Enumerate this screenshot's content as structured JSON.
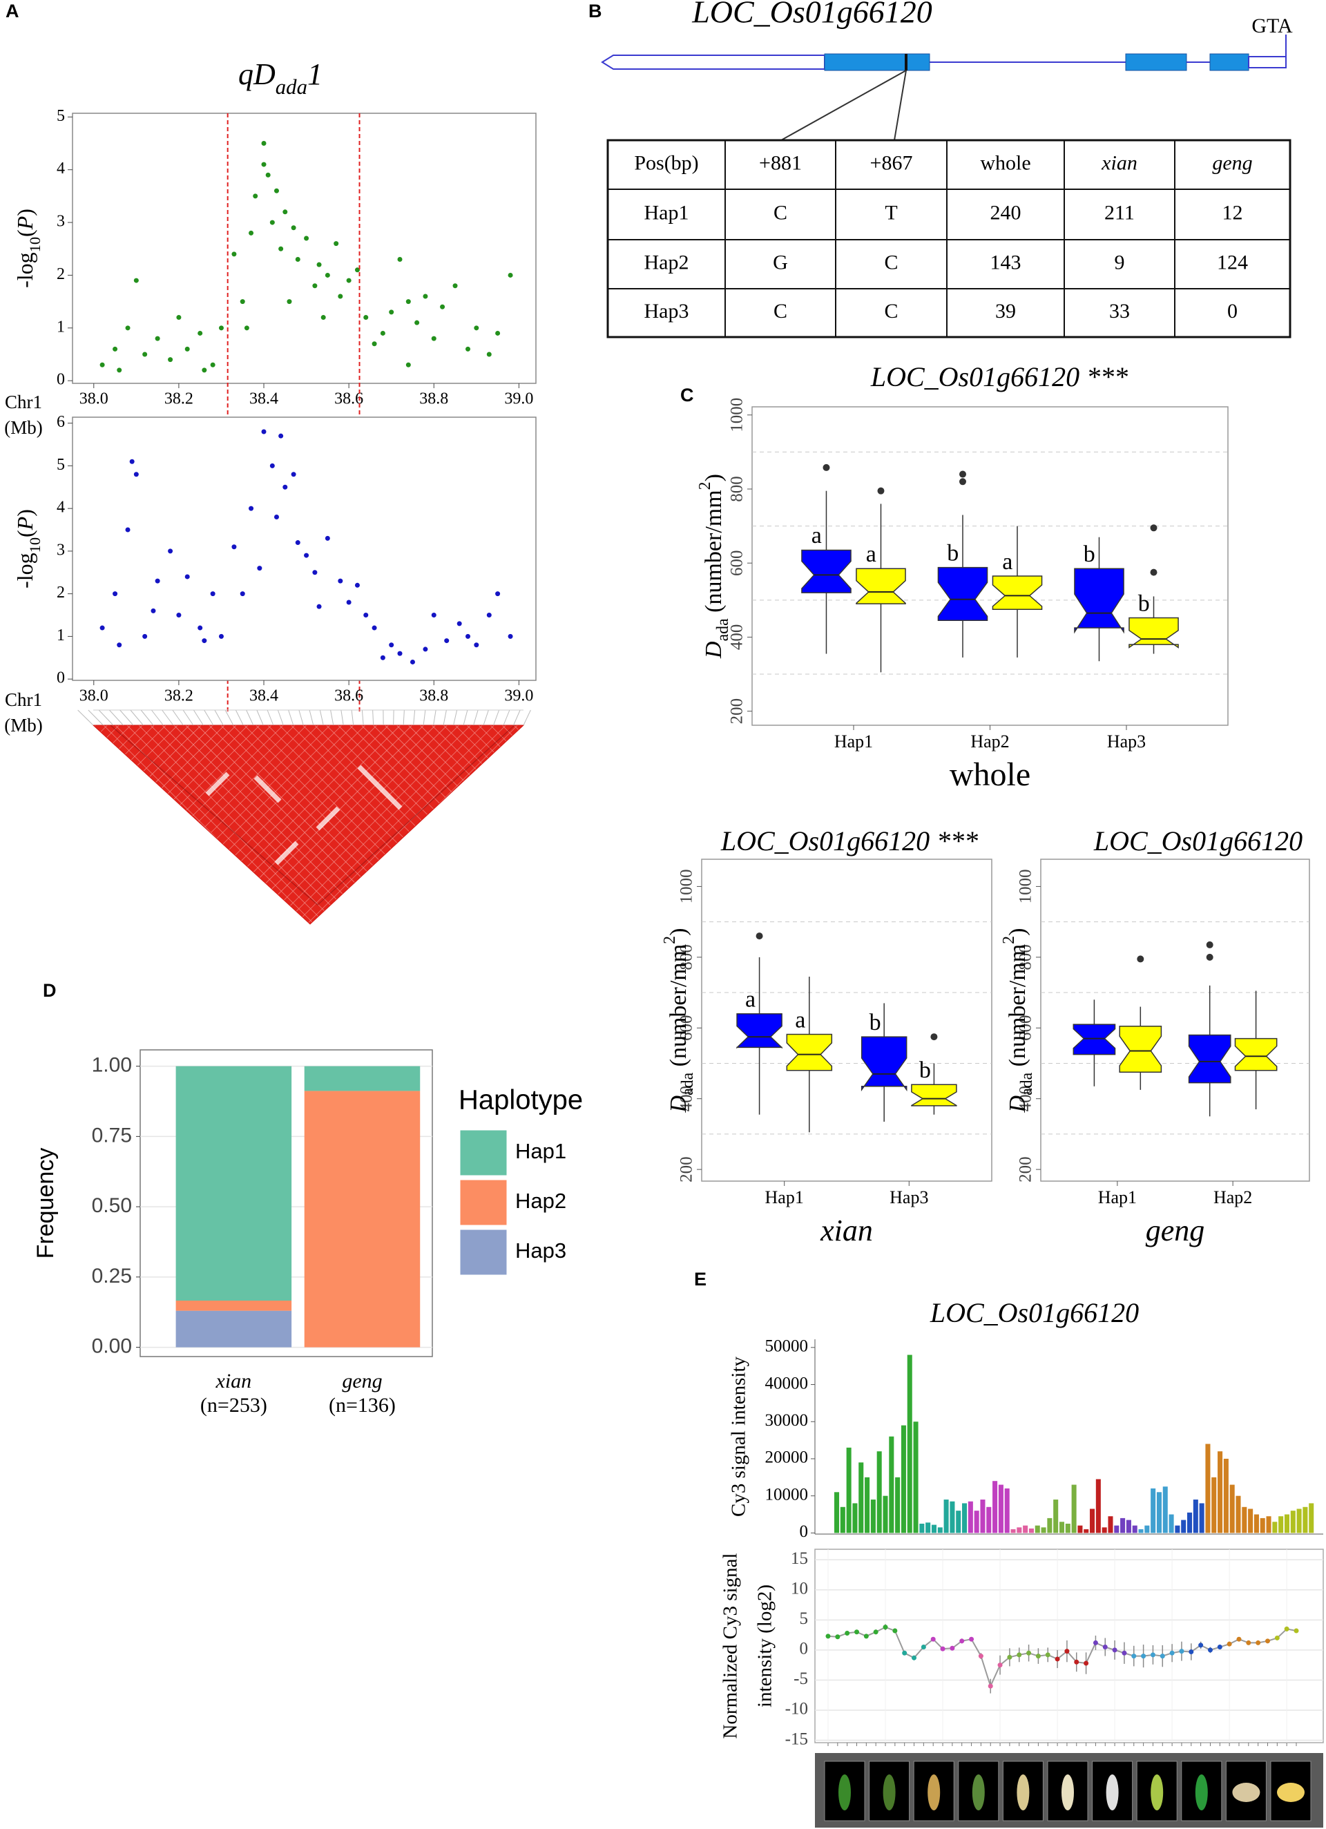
{
  "panel_labels": [
    "A",
    "B",
    "C",
    "D",
    "E"
  ],
  "gene": {
    "name": "LOC_Os01g66120",
    "end_label": "GTA"
  },
  "table": {
    "header": [
      "Pos(bp)",
      "+881",
      "+867",
      "whole",
      "xian",
      "geng"
    ],
    "rows": [
      [
        "Hap1",
        "C",
        "T",
        240,
        211,
        12
      ],
      [
        "Hap2",
        "G",
        "C",
        143,
        9,
        124
      ],
      [
        "Hap3",
        "C",
        "C",
        39,
        33,
        0
      ]
    ]
  },
  "chart_data": [
    {
      "type": "scatter",
      "title": [
        {
          "text": "qD"
        },
        {
          "text": "ada",
          "sub": true
        },
        {
          "text": "1"
        }
      ],
      "color": "#23901c",
      "ylabel": [
        {
          "text": "-log"
        },
        {
          "text": "10",
          "sub": true
        },
        {
          "text": "("
        },
        {
          "text": "P",
          "italic": true
        },
        {
          "text": ")"
        }
      ],
      "xlabel": [
        "Chr1",
        "(Mb)"
      ],
      "xlim": [
        37.95,
        39.04
      ],
      "ylim": [
        -0.05,
        5.07
      ],
      "xticks": [
        {
          "value": 38,
          "label": "38.0"
        },
        38.2,
        38.4,
        38.6,
        38.8,
        {
          "value": 39,
          "label": "39.0"
        }
      ],
      "yticks": [
        0,
        1,
        2,
        3,
        4,
        5
      ],
      "region": [
        38.315,
        38.625
      ],
      "x": [
        38.02,
        38.05,
        38.08,
        38.1,
        38.12,
        38.15,
        38.18,
        38.2,
        38.22,
        38.25,
        38.28,
        38.3,
        38.33,
        38.35,
        38.37,
        38.38,
        38.4,
        38.4,
        38.41,
        38.42,
        38.43,
        38.44,
        38.45,
        38.47,
        38.48,
        38.5,
        38.52,
        38.53,
        38.55,
        38.57,
        38.58,
        38.6,
        38.62,
        38.64,
        38.66,
        38.68,
        38.7,
        38.72,
        38.74,
        38.76,
        38.78,
        38.8,
        38.82,
        38.85,
        38.88,
        38.9,
        38.93,
        38.95,
        38.98,
        38.36,
        38.46,
        38.54,
        38.06,
        38.26,
        38.74
      ],
      "y": [
        0.3,
        0.6,
        1.0,
        1.9,
        0.5,
        0.8,
        0.4,
        1.2,
        0.6,
        0.9,
        0.3,
        1.0,
        2.4,
        1.5,
        2.8,
        3.5,
        4.5,
        4.1,
        3.9,
        3.0,
        3.6,
        2.5,
        3.2,
        2.9,
        2.3,
        2.7,
        1.8,
        2.2,
        2.0,
        2.6,
        1.6,
        1.9,
        2.1,
        1.2,
        0.7,
        0.9,
        1.3,
        2.3,
        1.5,
        1.1,
        1.6,
        0.8,
        1.4,
        1.8,
        0.6,
        1.0,
        0.5,
        0.9,
        2.0,
        1.0,
        1.5,
        1.2,
        0.2,
        0.2,
        0.3
      ]
    },
    {
      "type": "scatter",
      "color": "#1414c4",
      "ylabel": [
        {
          "text": "-log"
        },
        {
          "text": "10",
          "sub": true
        },
        {
          "text": "("
        },
        {
          "text": "P",
          "italic": true
        },
        {
          "text": ")"
        }
      ],
      "xlabel": [
        "Chr1",
        "(Mb)"
      ],
      "xlim": [
        37.95,
        39.04
      ],
      "ylim": [
        -0.03,
        6.14
      ],
      "xticks": [
        {
          "value": 38,
          "label": "38.0"
        },
        38.2,
        38.4,
        38.6,
        38.8,
        {
          "value": 39,
          "label": "39.0"
        }
      ],
      "yticks": [
        0,
        1,
        2,
        3,
        4,
        5,
        6
      ],
      "x": [
        38.02,
        38.05,
        38.08,
        38.09,
        38.1,
        38.12,
        38.15,
        38.18,
        38.2,
        38.22,
        38.25,
        38.28,
        38.3,
        38.33,
        38.35,
        38.37,
        38.4,
        38.42,
        38.44,
        38.45,
        38.47,
        38.43,
        38.48,
        38.5,
        38.52,
        38.55,
        38.58,
        38.6,
        38.62,
        38.64,
        38.66,
        38.68,
        38.7,
        38.72,
        38.75,
        38.78,
        38.8,
        38.83,
        38.86,
        38.88,
        38.9,
        38.93,
        38.95,
        38.98,
        38.06,
        38.14,
        38.26,
        38.39,
        38.53
      ],
      "y": [
        1.2,
        2.0,
        3.5,
        5.1,
        4.8,
        1.0,
        2.3,
        3.0,
        1.5,
        2.4,
        1.2,
        2.0,
        1.0,
        3.1,
        2.0,
        4.0,
        5.8,
        5.0,
        5.7,
        4.5,
        4.8,
        3.8,
        3.2,
        2.9,
        2.5,
        3.3,
        2.3,
        1.8,
        2.2,
        1.5,
        1.2,
        0.5,
        0.8,
        0.6,
        0.4,
        0.7,
        1.5,
        0.9,
        1.3,
        1.0,
        0.8,
        1.5,
        2.0,
        1.0,
        0.8,
        1.6,
        0.9,
        2.6,
        1.7
      ]
    },
    {
      "type": "box",
      "title": "LOC_Os01g66120 ***",
      "xlabel": "whole",
      "ylabel": [
        {
          "text": "D",
          "italic": true
        },
        {
          "text": "ada",
          "sub": true
        },
        {
          "text": " (number/mm"
        },
        {
          "text": "2",
          "sup": true
        },
        {
          "text": ")"
        }
      ],
      "ylim": [
        162,
        1022
      ],
      "yticks": [
        200,
        400,
        600,
        800,
        1000
      ],
      "minor_yticks": [
        300,
        500,
        700,
        900
      ],
      "categories": [
        "Hap1",
        "Hap2",
        "Hap3"
      ],
      "series": [
        {
          "color": "#0000ff",
          "letters": [
            "a",
            "b",
            "b"
          ],
          "boxes": [
            {
              "low": 355,
              "q1": 520,
              "median": 568,
              "q3": 635,
              "high": 795,
              "outliers": [
                858
              ]
            },
            {
              "low": 345,
              "q1": 445,
              "median": 502,
              "q3": 588,
              "high": 730,
              "outliers": [
                820,
                840
              ]
            },
            {
              "low": 335,
              "q1": 425,
              "median": 465,
              "q3": 585,
              "high": 670,
              "outliers": []
            }
          ]
        },
        {
          "color": "#ffff00",
          "letters": [
            "a",
            "a",
            "b"
          ],
          "boxes": [
            {
              "low": 305,
              "q1": 490,
              "median": 522,
              "q3": 585,
              "high": 760,
              "outliers": [
                795
              ]
            },
            {
              "low": 345,
              "q1": 475,
              "median": 512,
              "q3": 565,
              "high": 700,
              "outliers": []
            },
            {
              "low": 355,
              "q1": 380,
              "median": 395,
              "q3": 452,
              "high": 510,
              "outliers": [
                575,
                695
              ]
            }
          ]
        }
      ]
    },
    {
      "type": "box",
      "title": "LOC_Os01g66120 ***",
      "xlabel": "xian",
      "ylabel": [
        {
          "text": "D",
          "italic": true
        },
        {
          "text": "ada",
          "sub": true
        },
        {
          "text": " (number/mm"
        },
        {
          "text": "2",
          "sup": true
        },
        {
          "text": ")"
        }
      ],
      "ylim": [
        167,
        1077
      ],
      "yticks": [
        200,
        400,
        600,
        800,
        1000
      ],
      "minor_yticks": [
        300,
        500,
        700,
        900
      ],
      "categories": [
        "Hap1",
        "Hap3"
      ],
      "series": [
        {
          "color": "#0000ff",
          "letters": [
            "a",
            "b"
          ],
          "boxes": [
            {
              "low": 355,
              "q1": 545,
              "median": 575,
              "q3": 640,
              "high": 800,
              "outliers": [
                860
              ]
            },
            {
              "low": 335,
              "q1": 435,
              "median": 470,
              "q3": 575,
              "high": 670,
              "outliers": []
            }
          ]
        },
        {
          "color": "#ffff00",
          "letters": [
            "a",
            "b"
          ],
          "boxes": [
            {
              "low": 305,
              "q1": 480,
              "median": 525,
              "q3": 582,
              "high": 745,
              "outliers": []
            },
            {
              "low": 355,
              "q1": 380,
              "median": 400,
              "q3": 440,
              "high": 500,
              "outliers": [
                575
              ]
            }
          ]
        }
      ]
    },
    {
      "type": "box",
      "title": "LOC_Os01g66120",
      "xlabel": "geng",
      "ylabel": [
        {
          "text": "D",
          "italic": true
        },
        {
          "text": "ada",
          "sub": true
        },
        {
          "text": " (number/mm"
        },
        {
          "text": "2",
          "sup": true
        },
        {
          "text": ")"
        }
      ],
      "ylim": [
        167,
        1077
      ],
      "yticks": [
        200,
        400,
        600,
        800,
        1000
      ],
      "minor_yticks": [
        300,
        500,
        700,
        900
      ],
      "categories": [
        "Hap1",
        "Hap2"
      ],
      "series": [
        {
          "color": "#0000ff",
          "boxes": [
            {
              "low": 435,
              "q1": 525,
              "median": 570,
              "q3": 610,
              "high": 680,
              "outliers": []
            },
            {
              "low": 350,
              "q1": 445,
              "median": 505,
              "q3": 580,
              "high": 720,
              "outliers": [
                800,
                835
              ]
            }
          ]
        },
        {
          "color": "#ffff00",
          "boxes": [
            {
              "low": 425,
              "q1": 475,
              "median": 535,
              "q3": 605,
              "high": 660,
              "outliers": [
                795
              ]
            },
            {
              "low": 370,
              "q1": 480,
              "median": 520,
              "q3": 570,
              "high": 705,
              "outliers": []
            }
          ]
        }
      ]
    },
    {
      "type": "bar",
      "stacked": true,
      "title": "LOC_Os01g66120",
      "ylabel": "Frequency",
      "legend_title": "Haplotype",
      "legend": "right",
      "categories": [
        "xian",
        "geng"
      ],
      "n_labels": [
        "(n=253)",
        "(n=136)"
      ],
      "ylim": [
        -0.033,
        1.058
      ],
      "yticks": [
        {
          "value": 0,
          "label": "0.00"
        },
        {
          "value": 0.25,
          "label": "0.25"
        },
        {
          "value": 0.5,
          "label": "0.50"
        },
        {
          "value": 0.75,
          "label": "0.75"
        },
        {
          "value": 1,
          "label": "1.00"
        }
      ],
      "series": [
        {
          "name": "Hap1",
          "color": "#66c2a5",
          "values": [
            0.834,
            0.088
          ]
        },
        {
          "name": "Hap2",
          "color": "#fc8d62",
          "values": [
            0.036,
            0.912
          ]
        },
        {
          "name": "Hap3",
          "color": "#8da0cb",
          "values": [
            0.13,
            0
          ]
        }
      ]
    },
    {
      "type": "bar",
      "title": "LOC_Os01g66120",
      "ylabel": "Cy3 signal intensity",
      "ylim": [
        -300,
        52200
      ],
      "yticks": [
        0,
        10000,
        20000,
        30000,
        40000,
        50000
      ],
      "series": [
        {
          "color": "#33aa33",
          "values": [
            11000,
            7000,
            23000,
            8000,
            19000,
            15000,
            9000,
            22000,
            10000,
            26000,
            15000,
            29000,
            48000,
            30000
          ]
        },
        {
          "color": "#22a89a",
          "values": [
            2500,
            2800,
            2200,
            1500,
            9000,
            8500,
            6000,
            8000
          ]
        },
        {
          "color": "#c040c0",
          "values": [
            8500,
            6000,
            9000,
            7000,
            14000,
            13000,
            12000
          ]
        },
        {
          "color": "#e060a0",
          "values": [
            1000,
            1500,
            2000,
            1200
          ]
        },
        {
          "color": "#7ab040",
          "values": [
            2000,
            1500,
            4000,
            9000,
            3000,
            2500,
            13000
          ]
        },
        {
          "color": "#c02020",
          "values": [
            2000,
            1000,
            6500,
            14500,
            1500,
            4500
          ]
        },
        {
          "color": "#7040c0",
          "values": [
            2000,
            4000,
            3500,
            2000
          ]
        },
        {
          "color": "#40a0d0",
          "values": [
            1000,
            2000,
            12000,
            11000,
            12500,
            5000
          ]
        },
        {
          "color": "#2050c0",
          "values": [
            2000,
            3500,
            5500,
            9000,
            8000
          ]
        },
        {
          "color": "#d08020",
          "values": [
            24000,
            15000,
            22000,
            20000,
            13000,
            10000,
            7000,
            6500,
            5000,
            4000,
            4500
          ]
        },
        {
          "color": "#b0c020",
          "values": [
            3000,
            4500,
            5000,
            6000,
            6500,
            7000,
            8000
          ]
        }
      ]
    },
    {
      "type": "line",
      "ylabel": [
        "Normalized Cy3 signal",
        "intensity (log2)"
      ],
      "ylim": [
        -15.4,
        16.75
      ],
      "yticks": [
        -15,
        -10,
        -5,
        0,
        5,
        10,
        15
      ],
      "grid": true,
      "series": [
        {
          "color": "#9a9a9a",
          "values": [
            2.3,
            2.2,
            2.8,
            3,
            2.3,
            3,
            3.8,
            3.2,
            -0.5,
            -1.3,
            0.5,
            1.8,
            0.2,
            0.3,
            1.5,
            1.8,
            -1,
            -6,
            -2.5,
            -1.2,
            -0.8,
            -0.5,
            -1,
            -0.8,
            -1.5,
            -0.2,
            -2,
            -2.2,
            1.2,
            0.5,
            0,
            -0.5,
            -1,
            -1,
            -0.8,
            -1,
            -0.5,
            -0.2,
            -0.3,
            0.8,
            0,
            0.5,
            1,
            1.8,
            1.2,
            1.2,
            1.5,
            2,
            3.5,
            3.2
          ],
          "errors": [
            0.3,
            0.3,
            0.4,
            0.3,
            0.3,
            0.4,
            0.5,
            0.4,
            0.3,
            0.4,
            0.3,
            0.3,
            0.3,
            0.3,
            0.4,
            0.3,
            0.5,
            1.2,
            1.6,
            1.5,
            1.2,
            1.4,
            1.3,
            1.2,
            1.5,
            1.8,
            1.6,
            1.8,
            1.2,
            1.5,
            1.6,
            1.8,
            1.7,
            1.9,
            1.6,
            1.8,
            1.5,
            1.6,
            1.4,
            0.6,
            0.5,
            0.4,
            0.3,
            0.3,
            0.3,
            0.3,
            0.3,
            0.3,
            0.4,
            0.3
          ],
          "point_colors": [
            "#33aa33",
            "#33aa33",
            "#33aa33",
            "#33aa33",
            "#33aa33",
            "#33aa33",
            "#33aa33",
            "#33aa33",
            "#22a89a",
            "#22a89a",
            "#22a89a",
            "#c040c0",
            "#c040c0",
            "#c040c0",
            "#c040c0",
            "#c040c0",
            "#e060a0",
            "#e060a0",
            "#e060a0",
            "#7ab040",
            "#7ab040",
            "#7ab040",
            "#7ab040",
            "#7ab040",
            "#c02020",
            "#c02020",
            "#c02020",
            "#c02020",
            "#7040c0",
            "#7040c0",
            "#7040c0",
            "#7040c0",
            "#40a0d0",
            "#40a0d0",
            "#40a0d0",
            "#40a0d0",
            "#40a0d0",
            "#40a0d0",
            "#2050c0",
            "#2050c0",
            "#2050c0",
            "#2050c0",
            "#d08020",
            "#d08020",
            "#d08020",
            "#d08020",
            "#d08020",
            "#b0c020",
            "#b0c020",
            "#b0c020"
          ]
        }
      ]
    }
  ]
}
